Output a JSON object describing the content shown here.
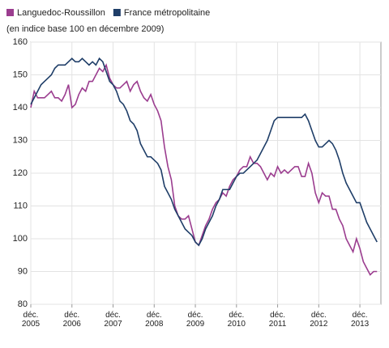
{
  "chart_data": {
    "type": "line",
    "subtitle": "(en indice base 100 en décembre 2009)",
    "categories": [
      "déc. 2005",
      null,
      null,
      null,
      null,
      null,
      null,
      null,
      null,
      null,
      null,
      null,
      "déc. 2006",
      null,
      null,
      null,
      null,
      null,
      null,
      null,
      null,
      null,
      null,
      null,
      "déc. 2007",
      null,
      null,
      null,
      null,
      null,
      null,
      null,
      null,
      null,
      null,
      null,
      "déc. 2008",
      null,
      null,
      null,
      null,
      null,
      null,
      null,
      null,
      null,
      null,
      null,
      "déc. 2009",
      null,
      null,
      null,
      null,
      null,
      null,
      null,
      null,
      null,
      null,
      null,
      "déc. 2010",
      null,
      null,
      null,
      null,
      null,
      null,
      null,
      null,
      null,
      null,
      null,
      "déc. 2011",
      null,
      null,
      null,
      null,
      null,
      null,
      null,
      null,
      null,
      null,
      null,
      "déc. 2012",
      null,
      null,
      null,
      null,
      null,
      null,
      null,
      null,
      null,
      null,
      null,
      "déc. 2013",
      null,
      null,
      null,
      null,
      null
    ],
    "series": [
      {
        "name": "Languedoc-Roussillon",
        "color": "#9b3d8f",
        "values": [
          140,
          145,
          143,
          143,
          143,
          144,
          145,
          143,
          143,
          142,
          144,
          147,
          140,
          141,
          144,
          146,
          145,
          148,
          148,
          150,
          152,
          151,
          153,
          149,
          147,
          146,
          146,
          147,
          148,
          145,
          147,
          148,
          145,
          143,
          142,
          144,
          141,
          139,
          136,
          128,
          122,
          118,
          110,
          107,
          106,
          106,
          107,
          103,
          99,
          98,
          101,
          104,
          106,
          109,
          111,
          112,
          114,
          113,
          116,
          118,
          119,
          121,
          122,
          122,
          125,
          123,
          123,
          122,
          120,
          118,
          120,
          119,
          122,
          120,
          121,
          120,
          121,
          122,
          122,
          119,
          119,
          123,
          120,
          114,
          111,
          114,
          113,
          113,
          109,
          109,
          106,
          104,
          100,
          98,
          96,
          100,
          97,
          93,
          91,
          89,
          90,
          90
        ]
      },
      {
        "name": "France métropolitaine",
        "color": "#1f3e68",
        "values": [
          141,
          143,
          145,
          147,
          148,
          149,
          150,
          152,
          153,
          153,
          153,
          154,
          155,
          154,
          154,
          155,
          154,
          153,
          154,
          153,
          155,
          154,
          151,
          148,
          147,
          145,
          142,
          141,
          139,
          136,
          135,
          133,
          129,
          127,
          125,
          125,
          124,
          123,
          121,
          116,
          114,
          112,
          109,
          107,
          105,
          103,
          102,
          101,
          99,
          98,
          100,
          103,
          105,
          107,
          110,
          112,
          115,
          115,
          115,
          117,
          119,
          120,
          120,
          121,
          122,
          123,
          124,
          126,
          128,
          130,
          133,
          136,
          137,
          137,
          137,
          137,
          137,
          137,
          137,
          137,
          138,
          136,
          133,
          130,
          128,
          128,
          129,
          130,
          129,
          127,
          124,
          120,
          117,
          115,
          113,
          111,
          111,
          108,
          105,
          103,
          101,
          99
        ]
      }
    ],
    "ylim": [
      80,
      160
    ],
    "yticks": [
      80,
      90,
      100,
      110,
      120,
      130,
      140,
      150,
      160
    ],
    "grid": true
  }
}
